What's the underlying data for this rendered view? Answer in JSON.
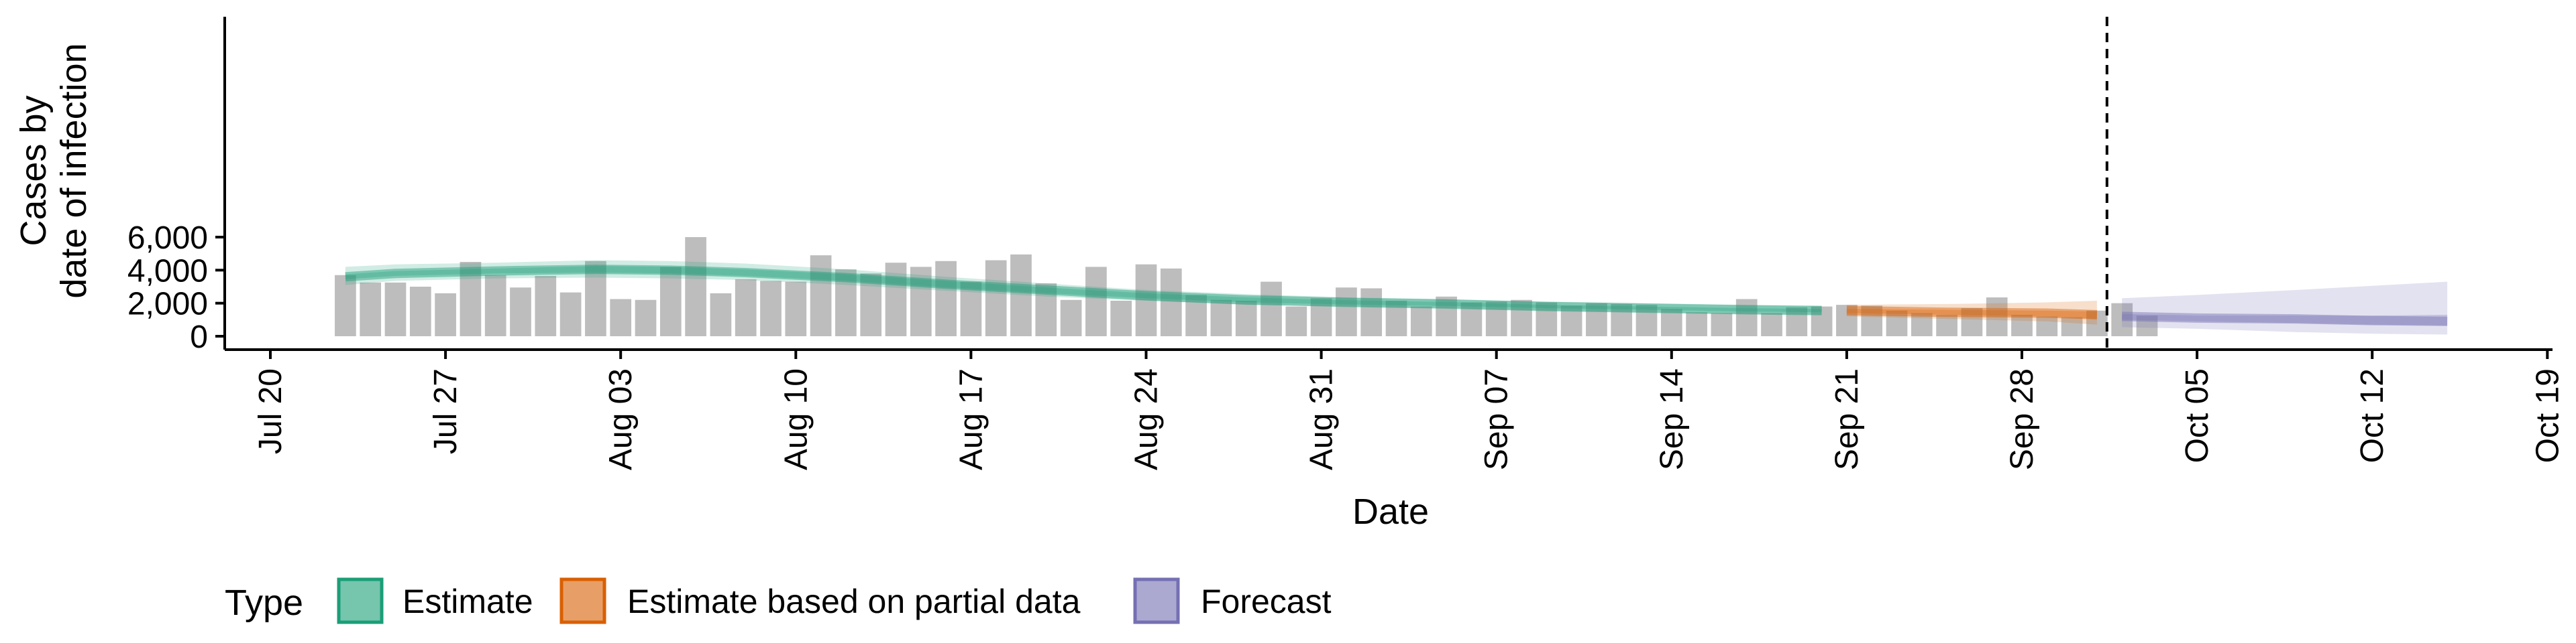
{
  "chart_data": {
    "type": "bar",
    "xlabel": "Date",
    "ylabel_lines": [
      "Cases by",
      "date of infection"
    ],
    "ylim": [
      0,
      6000
    ],
    "y_ticks": [
      0,
      2000,
      4000,
      6000
    ],
    "y_tick_labels": [
      "0",
      "2,000",
      "4,000",
      "6,000"
    ],
    "x_start": "2020-07-20",
    "x_ticks": [
      "2020-07-20",
      "2020-07-27",
      "2020-08-03",
      "2020-08-10",
      "2020-08-17",
      "2020-08-24",
      "2020-08-31",
      "2020-09-07",
      "2020-09-14",
      "2020-09-21",
      "2020-09-28",
      "2020-10-05",
      "2020-10-12",
      "2020-10-19"
    ],
    "x_tick_labels": [
      "Jul 20",
      "Jul 27",
      "Aug 03",
      "Aug 10",
      "Aug 17",
      "Aug 24",
      "Aug 31",
      "Sep 07",
      "Sep 14",
      "Sep 21",
      "Sep 28",
      "Oct 05",
      "Oct 12",
      "Oct 19"
    ],
    "vline_date": "2020-10-01",
    "bars": {
      "start_date": "2020-07-23",
      "color": "#bdbdbd",
      "values": [
        3700,
        3250,
        3250,
        3000,
        2600,
        4500,
        3700,
        2950,
        3650,
        2650,
        4550,
        2250,
        2200,
        4200,
        6000,
        2600,
        3450,
        3350,
        3300,
        4900,
        4050,
        3800,
        4450,
        4200,
        4550,
        3300,
        4600,
        4950,
        3200,
        2200,
        4200,
        2150,
        4350,
        4100,
        2500,
        2200,
        2150,
        3300,
        1800,
        2300,
        2950,
        2900,
        2150,
        1800,
        2400,
        2050,
        2100,
        2200,
        2050,
        1850,
        2000,
        1950,
        1900,
        1650,
        1450,
        1400,
        2250,
        1400,
        1750,
        1800,
        1900,
        1850,
        1550,
        1400,
        1300,
        1700,
        2350,
        1300,
        1200,
        1150,
        1550,
        2000,
        1250
      ]
    },
    "bands": [
      {
        "name": "Estimate",
        "color": "#1b9e77",
        "dates": [
          "2020-07-23",
          "2020-07-25",
          "2020-07-29",
          "2020-08-02",
          "2020-08-05",
          "2020-08-08",
          "2020-08-12",
          "2020-08-16",
          "2020-08-20",
          "2020-08-24",
          "2020-08-28",
          "2020-09-01",
          "2020-09-05",
          "2020-09-09",
          "2020-09-13",
          "2020-09-17",
          "2020-09-20"
        ],
        "median": [
          3600,
          3800,
          3950,
          4050,
          4000,
          3850,
          3550,
          3150,
          2800,
          2450,
          2200,
          2050,
          1950,
          1800,
          1700,
          1600,
          1550
        ],
        "lower50": [
          3450,
          3650,
          3800,
          3850,
          3800,
          3650,
          3350,
          2950,
          2600,
          2300,
          2050,
          1920,
          1830,
          1700,
          1600,
          1500,
          1450
        ],
        "upper50": [
          3750,
          3950,
          4100,
          4250,
          4200,
          4050,
          3750,
          3350,
          2950,
          2600,
          2350,
          2180,
          2070,
          1900,
          1800,
          1700,
          1650
        ],
        "lower90": [
          3100,
          3350,
          3500,
          3550,
          3500,
          3400,
          3100,
          2750,
          2400,
          2150,
          1900,
          1800,
          1700,
          1550,
          1450,
          1350,
          1300
        ],
        "upper90": [
          4200,
          4350,
          4450,
          4600,
          4550,
          4400,
          4050,
          3600,
          3200,
          2800,
          2550,
          2350,
          2250,
          2100,
          2000,
          1900,
          1850
        ]
      },
      {
        "name": "Estimate based on partial data",
        "color": "#d95f02",
        "dates": [
          "2020-09-21",
          "2020-09-25",
          "2020-09-29",
          "2020-10-01"
        ],
        "median": [
          1550,
          1450,
          1400,
          1300
        ],
        "lower50": [
          1400,
          1300,
          1200,
          1050
        ],
        "upper50": [
          1650,
          1600,
          1550,
          1500
        ],
        "lower90": [
          1200,
          1050,
          900,
          700
        ],
        "upper90": [
          1900,
          1950,
          2050,
          2150
        ]
      },
      {
        "name": "Forecast",
        "color": "#7570b3",
        "dates": [
          "2020-10-02",
          "2020-10-05",
          "2020-10-09",
          "2020-10-12",
          "2020-10-15"
        ],
        "median": [
          1200,
          1100,
          1050,
          950,
          900
        ],
        "lower50": [
          1000,
          900,
          800,
          700,
          650
        ],
        "upper50": [
          1350,
          1250,
          1250,
          1250,
          1300
        ],
        "lower90": [
          550,
          450,
          250,
          150,
          100
        ],
        "upper90": [
          2300,
          2500,
          2800,
          3050,
          3300
        ]
      }
    ],
    "legend": {
      "title": "Type",
      "placement": "bottom",
      "entries": [
        {
          "label": "Estimate",
          "color": "#1b9e77"
        },
        {
          "label": "Estimate based on partial data",
          "color": "#d95f02"
        },
        {
          "label": "Forecast",
          "color": "#7570b3"
        }
      ]
    }
  }
}
